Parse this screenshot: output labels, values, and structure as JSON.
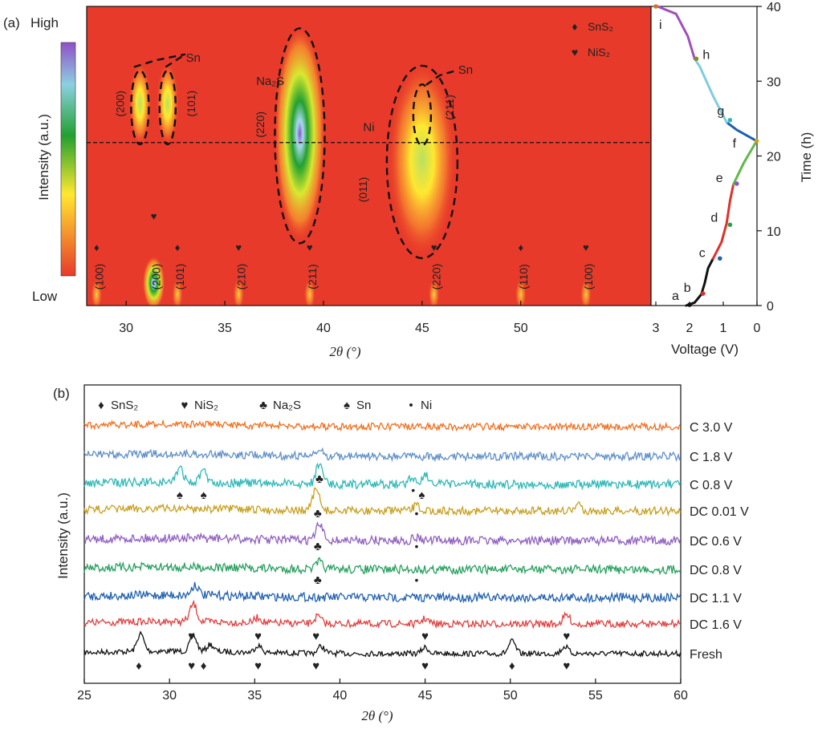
{
  "panel_a": {
    "label": "(a)",
    "scale_high": "High",
    "scale_low": "Low",
    "colorbar_label": "Intensity (a.u.)",
    "xlabel": "2θ (°)",
    "legend": [
      {
        "symbol": "♦",
        "text": "SnS₂"
      },
      {
        "symbol": "♥",
        "text": "NiS₂"
      }
    ],
    "annotations": {
      "sn_top": "Sn",
      "na2s": "Na₂S",
      "ni": "Ni",
      "sn_right": "Sn",
      "hkl_200": "(200)",
      "hkl_101": "(101)",
      "hkl_220": "(220)",
      "hkl_011": "(011)",
      "hkl_211": "(211)"
    },
    "bottom_labels": [
      {
        "x": 28.5,
        "sym": "♦",
        "hkl": "(100)"
      },
      {
        "x": 31.4,
        "sym": "♥",
        "hkl": "(200)"
      },
      {
        "x": 32.6,
        "sym": "♦",
        "hkl": "(101)"
      },
      {
        "x": 35.7,
        "sym": "♥",
        "hkl": "(210)"
      },
      {
        "x": 39.3,
        "sym": "♥",
        "hkl": "(211)"
      },
      {
        "x": 45.6,
        "sym": "♥",
        "hkl": "(220)"
      },
      {
        "x": 50.0,
        "sym": "♦",
        "hkl": "(110)"
      },
      {
        "x": 53.3,
        "sym": "♥",
        "hkl": "(100)"
      }
    ],
    "voltage_panel": {
      "xlabel": "Voltage (V)",
      "ylabel": "Time (h)",
      "points": [
        "a",
        "b",
        "c",
        "d",
        "e",
        "f",
        "g",
        "h",
        "i"
      ]
    }
  },
  "panel_b": {
    "label": "(b)",
    "xlabel": "2θ (°)",
    "ylabel": "Intensity (a.u.)",
    "legend": [
      {
        "symbol": "♦",
        "text": "SnS₂"
      },
      {
        "symbol": "♥",
        "text": "NiS₂"
      },
      {
        "symbol": "♣",
        "text": "Na₂S"
      },
      {
        "symbol": "♠",
        "text": "Sn"
      },
      {
        "symbol": "•",
        "text": "Ni"
      }
    ]
  },
  "chart_data": [
    {
      "type": "heatmap",
      "panel": "a-left",
      "xlim": [
        28,
        56.6
      ],
      "ylim": [
        0,
        40
      ],
      "xticks": [
        30,
        35,
        40,
        45,
        50
      ],
      "xlabel": "2θ (°)",
      "colorscale": [
        "#e83a2a",
        "#ffe830",
        "#22a030",
        "#8cd0e0",
        "#9050c8"
      ],
      "dashed_time_h": 21.8,
      "features": [
        {
          "name": "Sn (200)",
          "x": 30.7,
          "y_range": [
            22,
            32
          ],
          "intensity": 0.55
        },
        {
          "name": "Sn (101)",
          "x": 32.1,
          "y_range": [
            22,
            32
          ],
          "intensity": 0.5
        },
        {
          "name": "Na₂S (220)",
          "x": 38.8,
          "y_range": [
            9,
            37
          ],
          "intensity": 1.0
        },
        {
          "name": "Ni (011) / Sn (211)",
          "x": 45.0,
          "y_range": [
            7,
            32
          ],
          "intensity": 0.45
        },
        {
          "name": "NiS₂ (200)",
          "x": 31.4,
          "y_range": [
            0,
            6
          ],
          "intensity": 0.85
        },
        {
          "name": "SnS₂ (100)",
          "x": 28.5,
          "y_range": [
            0,
            3
          ],
          "intensity": 0.4
        },
        {
          "name": "SnS₂ (101)",
          "x": 32.6,
          "y_range": [
            0,
            3
          ],
          "intensity": 0.35
        },
        {
          "name": "NiS₂ (210)",
          "x": 35.7,
          "y_range": [
            0,
            3
          ],
          "intensity": 0.3
        },
        {
          "name": "NiS₂ (211)",
          "x": 39.3,
          "y_range": [
            0,
            3
          ],
          "intensity": 0.35
        },
        {
          "name": "NiS₂ (220)",
          "x": 45.6,
          "y_range": [
            0,
            3
          ],
          "intensity": 0.35
        },
        {
          "name": "SnS₂ (110)",
          "x": 50.0,
          "y_range": [
            0,
            3
          ],
          "intensity": 0.35
        },
        {
          "name": "NiS₂ (100)",
          "x": 53.3,
          "y_range": [
            0,
            3
          ],
          "intensity": 0.35
        }
      ]
    },
    {
      "type": "line",
      "panel": "a-right",
      "xlabel": "Voltage (V)",
      "ylabel": "Time (h)",
      "xlim": [
        3,
        0
      ],
      "ylim": [
        0,
        40
      ],
      "xticks": [
        3,
        2,
        1,
        0
      ],
      "yticks": [
        0,
        10,
        20,
        30,
        40
      ],
      "segments": [
        {
          "color": "#111111",
          "points": [
            [
              2.1,
              0
            ],
            [
              1.85,
              0.4
            ],
            [
              1.65,
              1.5
            ],
            [
              1.55,
              3
            ],
            [
              1.45,
              5
            ],
            [
              1.3,
              6.3
            ]
          ]
        },
        {
          "color": "#e0302a",
          "points": [
            [
              1.3,
              6.3
            ],
            [
              1.05,
              8.5
            ],
            [
              0.9,
              11
            ],
            [
              0.8,
              14
            ],
            [
              0.7,
              16.2
            ]
          ]
        },
        {
          "color": "#60b848",
          "points": [
            [
              0.7,
              16.2
            ],
            [
              0.4,
              19
            ],
            [
              0.01,
              22
            ]
          ]
        },
        {
          "color": "#2060b0",
          "points": [
            [
              0.01,
              22
            ],
            [
              0.6,
              23.5
            ],
            [
              0.9,
              24.5
            ]
          ]
        },
        {
          "color": "#80cce0",
          "points": [
            [
              0.9,
              24.5
            ],
            [
              1.3,
              28
            ],
            [
              1.7,
              32
            ],
            [
              1.85,
              33
            ]
          ]
        },
        {
          "color": "#a050b8",
          "points": [
            [
              1.85,
              33
            ],
            [
              2.05,
              36
            ],
            [
              2.4,
              39
            ],
            [
              2.95,
              40
            ]
          ]
        }
      ],
      "markers": [
        {
          "label": "a",
          "v": 2.0,
          "t": 0.1,
          "color": "#111111"
        },
        {
          "label": "b",
          "v": 1.6,
          "t": 1.6,
          "color": "#e0302a"
        },
        {
          "label": "c",
          "v": 1.1,
          "t": 6.3,
          "color": "#2060b0"
        },
        {
          "label": "d",
          "v": 0.8,
          "t": 10.8,
          "color": "#28a050"
        },
        {
          "label": "e",
          "v": 0.6,
          "t": 16.3,
          "color": "#9050c8"
        },
        {
          "label": "f",
          "v": 0.01,
          "t": 22.0,
          "color": "#d0a010"
        },
        {
          "label": "g",
          "v": 0.8,
          "t": 24.8,
          "color": "#30b8b8"
        },
        {
          "label": "h",
          "v": 1.8,
          "t": 33.0,
          "color": "#8a8a20"
        },
        {
          "label": "i",
          "v": 3.0,
          "t": 40.0,
          "color": "#e07020"
        }
      ]
    },
    {
      "type": "line",
      "panel": "b",
      "xlabel": "2θ (°)",
      "ylabel": "Intensity (a.u.)",
      "xlim": [
        25,
        60
      ],
      "xticks": [
        25,
        30,
        35,
        40,
        45,
        50,
        55,
        60
      ],
      "series": [
        {
          "name": "Fresh",
          "color": "#111111",
          "peaks": [
            [
              28.3,
              1.0
            ],
            [
              31.4,
              0.9
            ],
            [
              32.4,
              0.4
            ],
            [
              35.2,
              0.4
            ],
            [
              38.9,
              0.4
            ],
            [
              45.0,
              0.35
            ],
            [
              50.1,
              0.7
            ],
            [
              53.2,
              0.4
            ]
          ]
        },
        {
          "name": "DC 1.6 V",
          "color": "#e04040",
          "peaks": [
            [
              31.4,
              1.0
            ],
            [
              35.2,
              0.3
            ],
            [
              38.7,
              0.4
            ],
            [
              45.0,
              0.3
            ],
            [
              53.3,
              0.5
            ]
          ]
        },
        {
          "name": "DC 1.1 V",
          "color": "#2060b0",
          "peaks": [
            [
              31.5,
              0.6
            ]
          ]
        },
        {
          "name": "DC 0.8 V",
          "color": "#28a060",
          "peaks": [
            [
              38.8,
              0.4
            ]
          ]
        },
        {
          "name": "DC 0.6 V",
          "color": "#9060c0",
          "peaks": [
            [
              38.8,
              0.9
            ],
            [
              44.5,
              0.2
            ]
          ]
        },
        {
          "name": "DC 0.01 V",
          "color": "#c8a020",
          "peaks": [
            [
              38.6,
              1.2
            ],
            [
              44.5,
              0.3
            ],
            [
              54.0,
              0.3
            ]
          ]
        },
        {
          "name": "C 0.8 V",
          "color": "#30b8b8",
          "peaks": [
            [
              30.6,
              0.8
            ],
            [
              32.0,
              0.6
            ],
            [
              38.8,
              1.2
            ],
            [
              44.2,
              0.4
            ],
            [
              45.0,
              0.6
            ]
          ]
        },
        {
          "name": "C 1.8 V",
          "color": "#6090c8",
          "peaks": [
            [
              38.8,
              0.3
            ]
          ]
        },
        {
          "name": "C 3.0 V",
          "color": "#f07020",
          "peaks": []
        }
      ],
      "markers": [
        {
          "series": "Fresh",
          "items": [
            [
              28.2,
              "♦"
            ],
            [
              31.3,
              "♥"
            ],
            [
              32.0,
              "♦"
            ],
            [
              35.2,
              "♥"
            ],
            [
              38.6,
              "♥"
            ],
            [
              45.0,
              "♥"
            ],
            [
              50.1,
              "♦"
            ],
            [
              53.3,
              "♥"
            ]
          ]
        },
        {
          "series": "DC 1.6 V",
          "items": [
            [
              31.3,
              "♥"
            ],
            [
              35.2,
              "♥"
            ],
            [
              38.6,
              "♥"
            ],
            [
              45.0,
              "♥"
            ],
            [
              53.3,
              "♥"
            ]
          ]
        },
        {
          "series": "DC 0.8 V",
          "items": [
            [
              38.7,
              "♣"
            ],
            [
              44.5,
              "•"
            ]
          ]
        },
        {
          "series": "DC 0.6 V",
          "items": [
            [
              38.7,
              "♣"
            ],
            [
              44.5,
              "•"
            ]
          ]
        },
        {
          "series": "DC 0.01 V",
          "items": [
            [
              38.7,
              "♣"
            ],
            [
              44.5,
              "•"
            ]
          ]
        },
        {
          "series": "C 0.8 V",
          "items": [
            [
              30.6,
              "♠"
            ],
            [
              32.0,
              "♠"
            ],
            [
              38.8,
              "♣"
            ],
            [
              44.3,
              "•"
            ],
            [
              44.8,
              "♠"
            ]
          ]
        }
      ]
    }
  ]
}
